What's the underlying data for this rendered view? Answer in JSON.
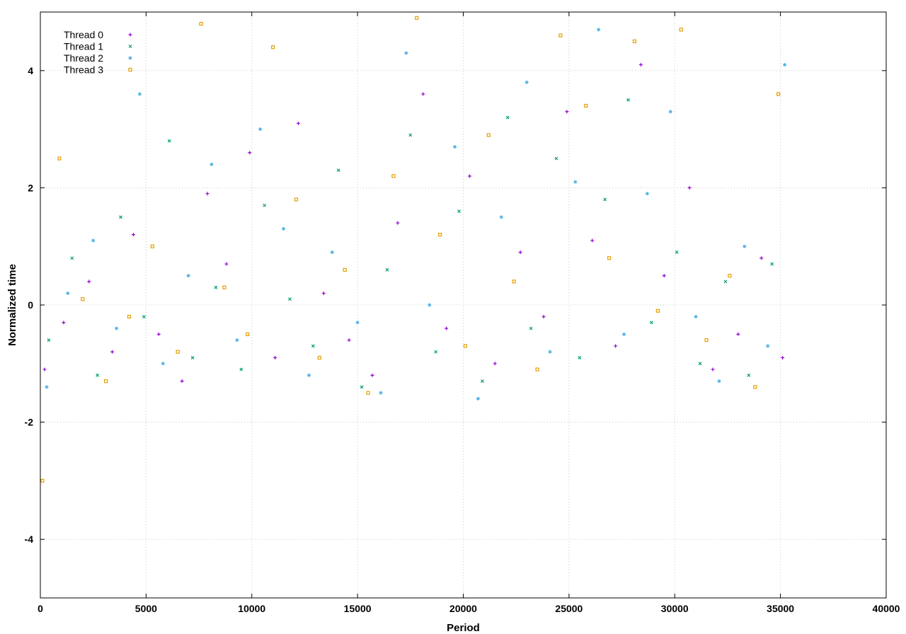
{
  "chart_data": {
    "type": "scatter",
    "title": "",
    "xlabel": "Period",
    "ylabel": "Normalized time",
    "xlim": [
      0,
      40000
    ],
    "ylim": [
      -5,
      5
    ],
    "x_ticks": [
      0,
      5000,
      10000,
      15000,
      20000,
      25000,
      30000,
      35000,
      40000
    ],
    "y_ticks": [
      -4,
      -2,
      0,
      2,
      4
    ],
    "grid": true,
    "legend_position": "top-left",
    "series": [
      {
        "name": "Thread 0",
        "color": "#9400d3",
        "marker": "plus",
        "x": [
          200,
          1100,
          2300,
          3400,
          4400,
          5600,
          6700,
          7900,
          8800,
          9900,
          11100,
          12200,
          13400,
          14600,
          15700,
          16900,
          18100,
          19200,
          20300,
          21500,
          22700,
          23800,
          24900,
          26100,
          27200,
          28400,
          29500,
          30700,
          31800,
          33000,
          34100,
          35100
        ],
        "y": [
          -1.1,
          -0.3,
          0.4,
          -0.8,
          1.2,
          -0.5,
          -1.3,
          1.9,
          0.7,
          2.6,
          -0.9,
          3.1,
          0.2,
          -0.6,
          -1.2,
          1.4,
          3.6,
          -0.4,
          2.2,
          -1.0,
          0.9,
          -0.2,
          3.3,
          1.1,
          -0.7,
          4.1,
          0.5,
          2.0,
          -1.1,
          -0.5,
          0.8,
          -0.9
        ]
      },
      {
        "name": "Thread 1",
        "color": "#009e73",
        "marker": "x",
        "x": [
          400,
          1500,
          2700,
          3800,
          4900,
          6100,
          7200,
          8300,
          9500,
          10600,
          11800,
          12900,
          14100,
          15200,
          16400,
          17500,
          18700,
          19800,
          20900,
          22100,
          23200,
          24400,
          25500,
          26700,
          27800,
          28900,
          30100,
          31200,
          32400,
          33500,
          34600
        ],
        "y": [
          -0.6,
          0.8,
          -1.2,
          1.5,
          -0.2,
          2.8,
          -0.9,
          0.3,
          -1.1,
          1.7,
          0.1,
          -0.7,
          2.3,
          -1.4,
          0.6,
          2.9,
          -0.8,
          1.6,
          -1.3,
          3.2,
          -0.4,
          2.5,
          -0.9,
          1.8,
          3.5,
          -0.3,
          0.9,
          -1.0,
          0.4,
          -1.2,
          0.7
        ]
      },
      {
        "name": "Thread 2",
        "color": "#56b4e9",
        "marker": "star",
        "x": [
          300,
          1300,
          2500,
          3600,
          4700,
          5800,
          7000,
          8100,
          9300,
          10400,
          11500,
          12700,
          13800,
          15000,
          16100,
          17300,
          18400,
          19600,
          20700,
          21800,
          23000,
          24100,
          25300,
          26400,
          27600,
          28700,
          29800,
          31000,
          32100,
          33300,
          34400,
          35200
        ],
        "y": [
          -1.4,
          0.2,
          1.1,
          -0.4,
          3.6,
          -1.0,
          0.5,
          2.4,
          -0.6,
          3.0,
          1.3,
          -1.2,
          0.9,
          -0.3,
          -1.5,
          4.3,
          0.0,
          2.7,
          -1.6,
          1.5,
          3.8,
          -0.8,
          2.1,
          4.7,
          -0.5,
          1.9,
          3.3,
          -0.2,
          -1.3,
          1.0,
          -0.7,
          4.1
        ]
      },
      {
        "name": "Thread 3",
        "color": "#e69f00",
        "marker": "box",
        "x": [
          100,
          900,
          2000,
          3100,
          4200,
          5300,
          6500,
          7600,
          8700,
          9800,
          11000,
          12100,
          13200,
          14400,
          15500,
          16700,
          17800,
          18900,
          20100,
          21200,
          22400,
          23500,
          24600,
          25800,
          26900,
          28100,
          29200,
          30300,
          31500,
          32600,
          33800,
          34900
        ],
        "y": [
          -3.0,
          2.5,
          0.1,
          -1.3,
          -0.2,
          1.0,
          -0.8,
          4.8,
          0.3,
          -0.5,
          4.4,
          1.8,
          -0.9,
          0.6,
          -1.5,
          2.2,
          4.9,
          1.2,
          -0.7,
          2.9,
          0.4,
          -1.1,
          4.6,
          3.4,
          0.8,
          4.5,
          -0.1,
          4.7,
          -0.6,
          0.5,
          -1.4,
          3.6
        ]
      }
    ]
  }
}
